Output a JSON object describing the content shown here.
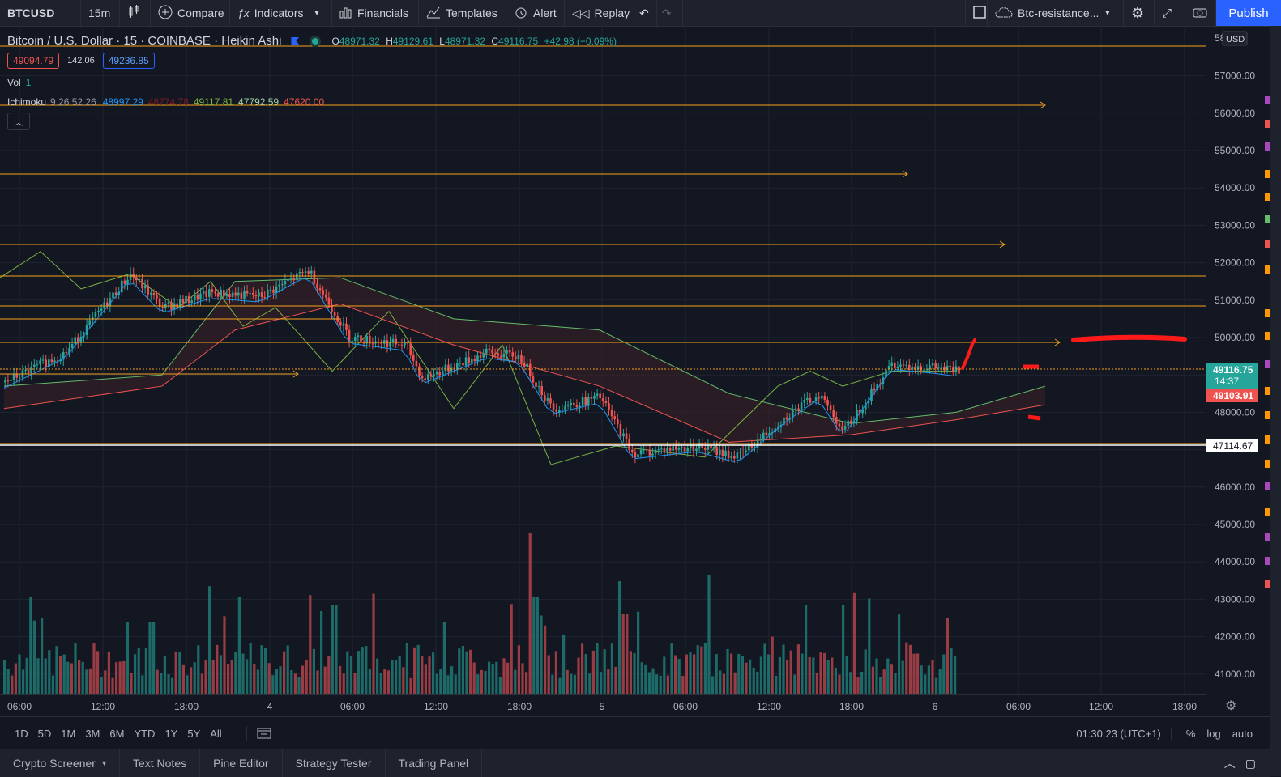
{
  "toolbar": {
    "symbol": "BTCUSD",
    "interval": "15m",
    "compare": "Compare",
    "indicators": "Indicators",
    "financials": "Financials",
    "templates": "Templates",
    "alert": "Alert",
    "replay": "Replay",
    "layout_name": "Btc-resistance...",
    "publish": "Publish"
  },
  "legend": {
    "title": "Bitcoin / U.S. Dollar · 15 · COINBASE · Heikin Ashi",
    "open_label": "O",
    "open": "48971.32",
    "high_label": "H",
    "high": "49129.61",
    "low_label": "L",
    "low": "48971.32",
    "close_label": "C",
    "close": "49116.75",
    "change": "+42.98 (+0.09%)",
    "bid": "49094.79",
    "spread": "142.06",
    "ask": "49236.85",
    "vol_label": "Vol",
    "vol_value": "1",
    "ichimoku_label": "Ichimoku",
    "ichimoku_params": "9 26 52 26",
    "ichimoku_values": [
      "48997.29",
      "48774.78",
      "49117.81",
      "47792.59",
      "47620.00"
    ]
  },
  "price_axis": {
    "currency": "USD",
    "top_partial": "58",
    "labels": [
      "57000.00",
      "56000.00",
      "55000.00",
      "54000.00",
      "53000.00",
      "52000.00",
      "51000.00",
      "50000.00",
      "48000.00",
      "46000.00",
      "45000.00",
      "44000.00",
      "43000.00",
      "42000.00",
      "41000.00"
    ],
    "current_price": "49116.75",
    "countdown": "14:37",
    "red_tag": "49103.91",
    "white_tag": "47114.67"
  },
  "time_axis": {
    "labels": [
      "06:00",
      "12:00",
      "18:00",
      "4",
      "06:00",
      "12:00",
      "18:00",
      "5",
      "06:00",
      "12:00",
      "18:00",
      "6",
      "06:00",
      "12:00",
      "18:00"
    ]
  },
  "bottom": {
    "ranges": [
      "1D",
      "5D",
      "1M",
      "3M",
      "6M",
      "YTD",
      "1Y",
      "5Y",
      "All"
    ],
    "clock": "01:30:23 (UTC+1)",
    "percent": "%",
    "log": "log",
    "auto": "auto"
  },
  "tabs": [
    "Crypto Screener",
    "Text Notes",
    "Pine Editor",
    "Strategy Tester",
    "Trading Panel"
  ],
  "colors": {
    "up": "#26a69a",
    "down": "#ef5350",
    "level": "#f7a21b",
    "accent": "#2962ff"
  }
}
